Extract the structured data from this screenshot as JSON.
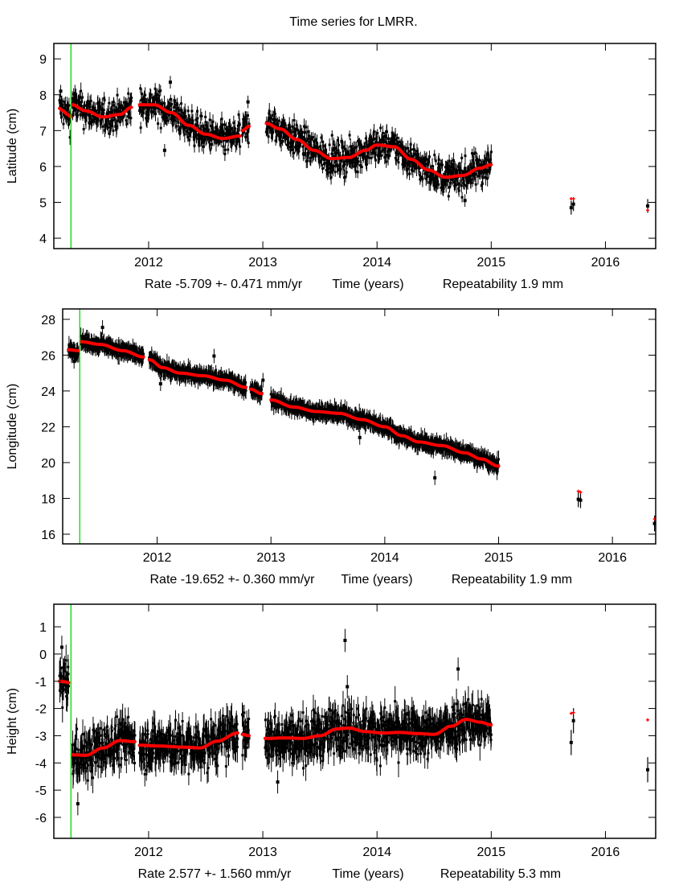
{
  "title": "Time series for LMRR.",
  "colors": {
    "data": "#000000",
    "fit": "#ff0000",
    "marker": "#00dd00",
    "frame": "#000000"
  },
  "chart_data": [
    {
      "type": "scatter",
      "ylabel": "Latitude (cm)",
      "xlabel_rate": "Rate -5.709 +- 0.471 mm/yr",
      "xlabel_center": "Time (years)",
      "xlabel_repeat": "Repeatability 1.9 mm",
      "xlim": [
        2011.17,
        2016.44
      ],
      "ylim": [
        3.71,
        9.43
      ],
      "xticks": [
        2012,
        2013,
        2014,
        2015,
        2016
      ],
      "xtick_labels": [
        "2012",
        "2013",
        "2014",
        "2015",
        "2016"
      ],
      "yticks": [
        4,
        5,
        6,
        7,
        8,
        9
      ],
      "ytick_labels": [
        "4",
        "5",
        "6",
        "7",
        "8",
        "9"
      ],
      "marker_line_x": 2011.32,
      "fit_segments": [
        {
          "x": [
            2011.22,
            2011.25,
            2011.29,
            2011.32
          ],
          "y": [
            7.62,
            7.55,
            7.45,
            7.38
          ]
        },
        {
          "x": [
            2011.33,
            2011.45,
            2011.6,
            2011.75,
            2011.85
          ],
          "y": [
            7.72,
            7.55,
            7.38,
            7.45,
            7.65
          ]
        },
        {
          "x": [
            2011.92,
            2012.05,
            2012.2,
            2012.35,
            2012.5,
            2012.65,
            2012.8
          ],
          "y": [
            7.72,
            7.72,
            7.5,
            7.15,
            6.9,
            6.78,
            6.85
          ]
        },
        {
          "x": [
            2012.82,
            2012.88
          ],
          "y": [
            7.0,
            7.12
          ]
        },
        {
          "x": [
            2013.03,
            2013.15,
            2013.3,
            2013.45,
            2013.6,
            2013.75,
            2013.9,
            2014.0,
            2014.15,
            2014.3,
            2014.45,
            2014.6,
            2014.75,
            2014.9,
            2015.0
          ],
          "y": [
            7.2,
            7.05,
            6.75,
            6.45,
            6.22,
            6.25,
            6.45,
            6.6,
            6.55,
            6.2,
            5.9,
            5.7,
            5.75,
            5.95,
            6.05
          ]
        }
      ],
      "noise": 0.22,
      "outliers": [
        {
          "x": 2011.23,
          "y": 8.1
        },
        {
          "x": 2012.19,
          "y": 8.35
        },
        {
          "x": 2012.14,
          "y": 6.45
        },
        {
          "x": 2012.87,
          "y": 7.8
        },
        {
          "x": 2014.77,
          "y": 5.05
        }
      ],
      "isolated": [
        {
          "x": 2015.7,
          "y": 4.85,
          "fit": 5.1
        },
        {
          "x": 2015.72,
          "y": 4.95,
          "fit": 5.1
        },
        {
          "x": 2016.37,
          "y": 4.9,
          "fit": 4.78
        }
      ]
    },
    {
      "type": "scatter",
      "ylabel": "Longitude (cm)",
      "xlabel_rate": "Rate -19.652 +- 0.360 mm/yr",
      "xlabel_center": "Time (years)",
      "xlabel_repeat": "Repeatability 1.9 mm",
      "xlim": [
        2011.17,
        2016.38
      ],
      "ylim": [
        15.46,
        28.58
      ],
      "xticks": [
        2012,
        2013,
        2014,
        2015,
        2016
      ],
      "xtick_labels": [
        "2012",
        "2013",
        "2014",
        "2015",
        "2016"
      ],
      "yticks": [
        16,
        18,
        20,
        22,
        24,
        26,
        28
      ],
      "ytick_labels": [
        "16",
        "18",
        "20",
        "22",
        "24",
        "26",
        "28"
      ],
      "marker_line_x": 2011.32,
      "fit_segments": [
        {
          "x": [
            2011.22,
            2011.31
          ],
          "y": [
            26.3,
            26.25
          ]
        },
        {
          "x": [
            2011.33,
            2011.5,
            2011.7,
            2011.88
          ],
          "y": [
            26.75,
            26.6,
            26.25,
            25.9
          ]
        },
        {
          "x": [
            2011.93,
            2012.05,
            2012.2,
            2012.4,
            2012.6,
            2012.78
          ],
          "y": [
            25.75,
            25.3,
            25.0,
            24.85,
            24.6,
            24.2
          ]
        },
        {
          "x": [
            2012.82,
            2012.92
          ],
          "y": [
            24.1,
            23.85
          ]
        },
        {
          "x": [
            2013.0,
            2013.2,
            2013.4,
            2013.6,
            2013.8,
            2014.0,
            2014.15,
            2014.3,
            2014.5,
            2014.7,
            2014.85,
            2015.0
          ],
          "y": [
            23.5,
            23.1,
            22.85,
            22.75,
            22.4,
            22.0,
            21.5,
            21.15,
            20.95,
            20.55,
            20.2,
            19.8
          ]
        }
      ],
      "noise": 0.14,
      "outliers": [
        {
          "x": 2011.52,
          "y": 27.55
        },
        {
          "x": 2011.27,
          "y": 25.65
        },
        {
          "x": 2012.5,
          "y": 25.95
        },
        {
          "x": 2012.03,
          "y": 24.4
        },
        {
          "x": 2012.93,
          "y": 24.6
        },
        {
          "x": 2014.44,
          "y": 19.15
        },
        {
          "x": 2013.78,
          "y": 21.4
        }
      ],
      "isolated": [
        {
          "x": 2015.7,
          "y": 17.95,
          "fit": 18.4
        },
        {
          "x": 2015.72,
          "y": 17.9,
          "fit": 18.35
        },
        {
          "x": 2016.37,
          "y": 16.6,
          "fit": 16.85
        }
      ]
    },
    {
      "type": "scatter",
      "ylabel": "Height (cm)",
      "xlabel_rate": "Rate 2.577 +- 1.560 mm/yr",
      "xlabel_center": "Time (years)",
      "xlabel_repeat": "Repeatability 5.3 mm",
      "xlim": [
        2011.17,
        2016.44
      ],
      "ylim": [
        -6.77,
        1.83
      ],
      "xticks": [
        2012,
        2013,
        2014,
        2015,
        2016
      ],
      "xtick_labels": [
        "2012",
        "2013",
        "2014",
        "2015",
        "2016"
      ],
      "yticks": [
        -6,
        -5,
        -4,
        -3,
        -2,
        -1,
        0,
        1
      ],
      "ytick_labels": [
        "-6",
        "-5",
        "-4",
        "-3",
        "-2",
        "-1",
        "0",
        "1"
      ],
      "marker_line_x": 2011.32,
      "fit_segments": [
        {
          "x": [
            2011.22,
            2011.26,
            2011.3
          ],
          "y": [
            -1.0,
            -1.02,
            -1.05
          ]
        },
        {
          "x": [
            2011.33,
            2011.45,
            2011.6,
            2011.75,
            2011.88
          ],
          "y": [
            -3.7,
            -3.72,
            -3.45,
            -3.18,
            -3.22
          ]
        },
        {
          "x": [
            2011.92,
            2012.1,
            2012.3,
            2012.45,
            2012.6,
            2012.78
          ],
          "y": [
            -3.35,
            -3.38,
            -3.42,
            -3.45,
            -3.2,
            -2.9
          ]
        },
        {
          "x": [
            2012.82,
            2012.88
          ],
          "y": [
            -2.95,
            -3.0
          ]
        },
        {
          "x": [
            2013.02,
            2013.2,
            2013.35,
            2013.5,
            2013.65,
            2013.75,
            2013.9,
            2014.05,
            2014.2,
            2014.35,
            2014.5,
            2014.65,
            2014.78,
            2014.9,
            2015.0
          ],
          "y": [
            -3.1,
            -3.08,
            -3.1,
            -3.0,
            -2.75,
            -2.72,
            -2.85,
            -2.9,
            -2.88,
            -2.92,
            -2.95,
            -2.65,
            -2.4,
            -2.5,
            -2.6
          ]
        }
      ],
      "noise": 0.42,
      "outliers": [
        {
          "x": 2011.24,
          "y": 0.25
        },
        {
          "x": 2013.72,
          "y": 0.5
        },
        {
          "x": 2013.74,
          "y": -1.2
        },
        {
          "x": 2014.71,
          "y": -0.55
        },
        {
          "x": 2011.38,
          "y": -5.5
        },
        {
          "x": 2013.13,
          "y": -4.7
        }
      ],
      "isolated": [
        {
          "x": 2015.7,
          "y": -3.25,
          "fit": -2.18
        },
        {
          "x": 2015.72,
          "y": -2.45,
          "fit": -2.15
        },
        {
          "x": 2016.37,
          "y": -4.25,
          "fit": -2.42
        }
      ]
    }
  ]
}
